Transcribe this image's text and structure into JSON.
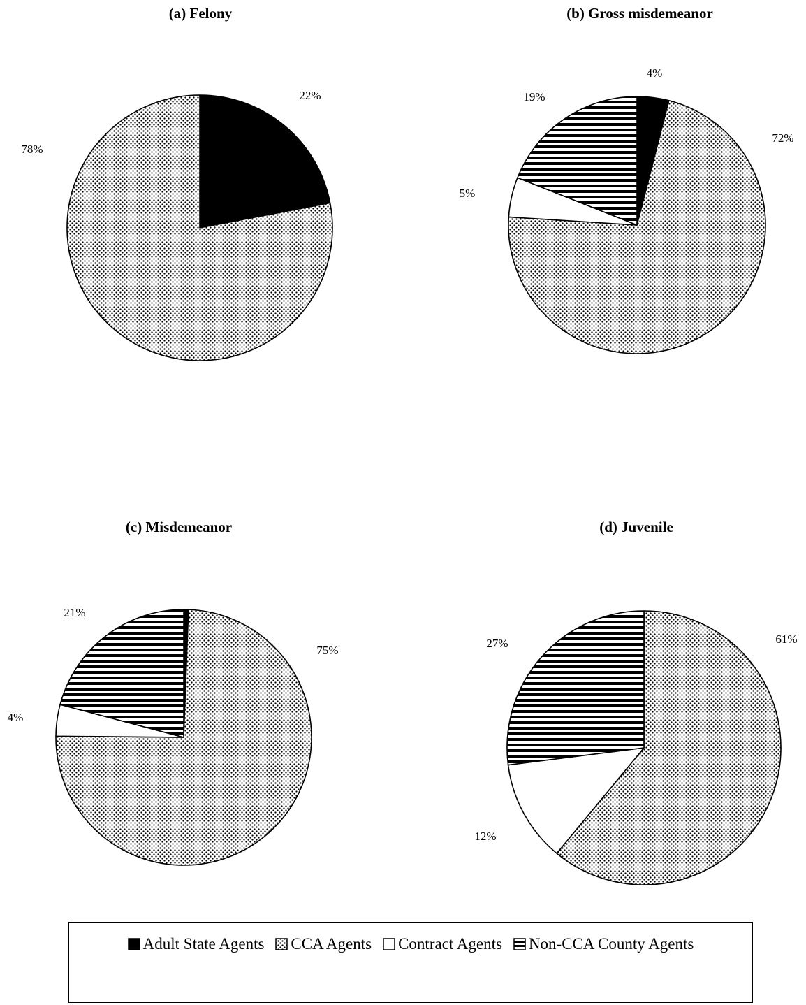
{
  "chart_data": [
    {
      "type": "pie",
      "title": "(a) Felony",
      "slices": [
        {
          "name": "Adult State Agents",
          "value": 22,
          "label": "22%"
        },
        {
          "name": "CCA Agents",
          "value": 78,
          "label": "78%"
        }
      ]
    },
    {
      "type": "pie",
      "title": "(b) Gross misdemeanor",
      "slices": [
        {
          "name": "Adult State Agents",
          "value": 4,
          "label": "4%"
        },
        {
          "name": "CCA Agents",
          "value": 72,
          "label": "72%"
        },
        {
          "name": "Contract Agents",
          "value": 5,
          "label": "5%"
        },
        {
          "name": "Non-CCA County Agents",
          "value": 19,
          "label": "19%"
        }
      ]
    },
    {
      "type": "pie",
      "title": "(c) Misdemeanor",
      "slices": [
        {
          "name": "Adult State Agents",
          "value": 0.6,
          "label": ""
        },
        {
          "name": "CCA Agents",
          "value": 75,
          "label": "75%"
        },
        {
          "name": "Contract Agents",
          "value": 4,
          "label": "4%"
        },
        {
          "name": "Non-CCA County Agents",
          "value": 21,
          "label": "21%"
        }
      ]
    },
    {
      "type": "pie",
      "title": "(d) Juvenile",
      "slices": [
        {
          "name": "CCA Agents",
          "value": 61,
          "label": "61%"
        },
        {
          "name": "Contract Agents",
          "value": 12,
          "label": "12%"
        },
        {
          "name": "Non-CCA County Agents",
          "value": 27,
          "label": "27%"
        }
      ]
    }
  ],
  "legend": {
    "placement": "bottom",
    "items": [
      {
        "label": "Adult State Agents",
        "pattern": "solid-black"
      },
      {
        "label": "CCA Agents",
        "pattern": "dots"
      },
      {
        "label": "Contract Agents",
        "pattern": "white"
      },
      {
        "label": "Non-CCA County Agents",
        "pattern": "horizontal-stripes"
      }
    ]
  }
}
